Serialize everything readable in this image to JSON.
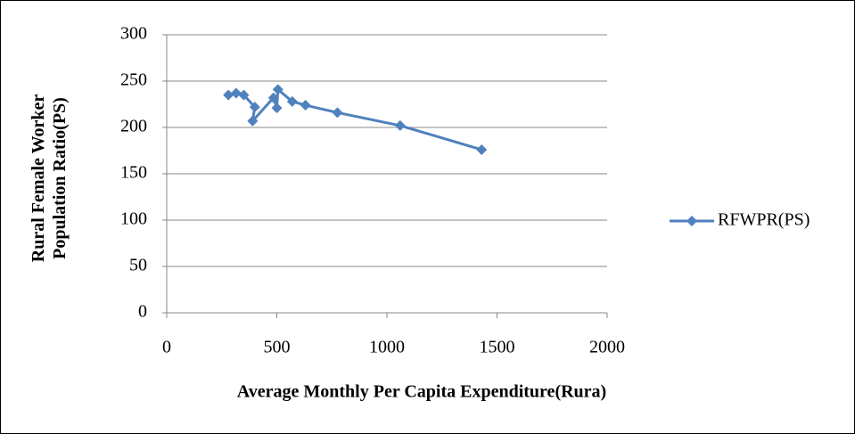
{
  "chart_data": {
    "type": "line",
    "xlabel": "Average Monthly Per Capita Expenditure(Rura)",
    "ylabel": "Rural Female Worker Population Ratio(PS)",
    "x": [
      280,
      315,
      350,
      400,
      390,
      485,
      500,
      505,
      570,
      630,
      775,
      1060,
      1430
    ],
    "series": [
      {
        "name": "RFWPR(PS)",
        "color": "#4f81bd",
        "values": [
          235,
          237,
          235,
          222,
          207,
          232,
          221,
          241,
          228,
          224,
          216,
          202,
          176
        ]
      }
    ],
    "xlim": [
      0,
      2000
    ],
    "xticks": [
      0,
      500,
      1000,
      1500,
      2000
    ],
    "ylim": [
      0,
      300
    ],
    "yticks": [
      0,
      50,
      100,
      150,
      200,
      250,
      300
    ],
    "grid": true,
    "legend": "right"
  }
}
